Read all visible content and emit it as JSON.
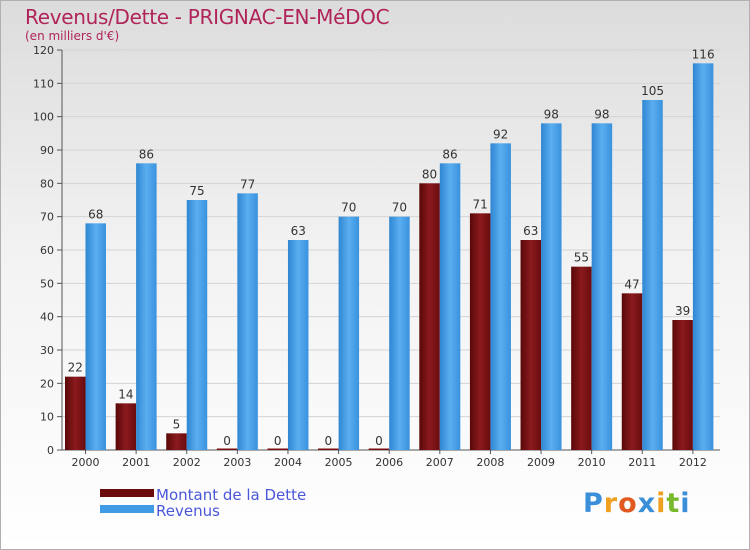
{
  "header": {
    "title": "Revenus/Dette - PRIGNAC-EN-MéDOC",
    "subtitle": "(en milliers d'€)"
  },
  "chart_data": {
    "type": "bar",
    "title": "Revenus/Dette - PRIGNAC-EN-MéDOC",
    "ylabel": "(en milliers d'€)",
    "xlabel": "",
    "categories": [
      "2000",
      "2001",
      "2002",
      "2003",
      "2004",
      "2005",
      "2006",
      "2007",
      "2008",
      "2009",
      "2010",
      "2011",
      "2012"
    ],
    "series": [
      {
        "name": "Montant de la Dette",
        "color": "#7a0f12",
        "values": [
          22,
          14,
          5,
          0,
          0,
          0,
          0,
          80,
          71,
          63,
          55,
          47,
          39
        ]
      },
      {
        "name": "Revenus",
        "color": "#3f9be6",
        "values": [
          68,
          86,
          75,
          77,
          63,
          70,
          70,
          86,
          92,
          98,
          98,
          105,
          116
        ]
      }
    ],
    "ylim": [
      0,
      120
    ],
    "yticks": [
      0,
      10,
      20,
      30,
      40,
      50,
      60,
      70,
      80,
      90,
      100,
      110,
      120
    ],
    "grid": true,
    "legend": "bottom-left"
  },
  "legend": {
    "items": [
      {
        "label": "Montant de la Dette",
        "color": "#6b0a0a"
      },
      {
        "label": "Revenus",
        "color": "#3f9be6"
      }
    ]
  },
  "logo": {
    "letters": [
      "P",
      "r",
      "o",
      "x",
      "i",
      "t",
      "i"
    ],
    "colors": [
      "#3a8fd8",
      "#f0a020",
      "#e05a20",
      "#3a8fd8",
      "#f0a020",
      "#7ab82e",
      "#3a8fd8"
    ]
  }
}
